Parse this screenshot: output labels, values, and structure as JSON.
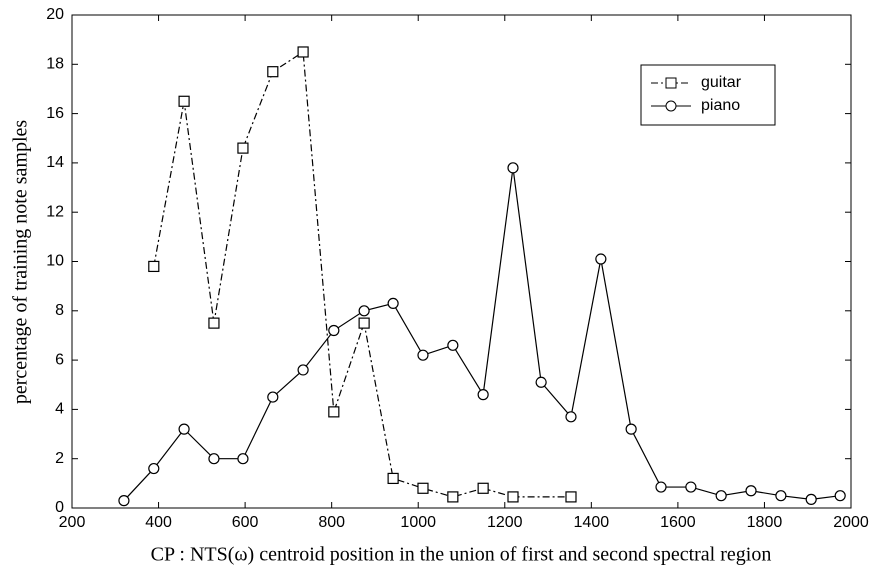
{
  "chart_data": {
    "type": "line",
    "xlabel": "CP : NTS(ω) centroid position in the union of first and second spectral region",
    "ylabel": "percentage of training note samples",
    "xlim": [
      200,
      2000
    ],
    "ylim": [
      0,
      20
    ],
    "xticks": [
      200,
      400,
      600,
      800,
      1000,
      1200,
      1400,
      1600,
      1800,
      2000
    ],
    "yticks": [
      0,
      2,
      4,
      6,
      8,
      10,
      12,
      14,
      16,
      18,
      20
    ],
    "legend": "upper right",
    "series": [
      {
        "name": "guitar",
        "color": "#000000",
        "linestyle": "dashdot",
        "marker": "square",
        "x": [
          389,
          459,
          528,
          595,
          664,
          734,
          805,
          875,
          942,
          1011,
          1080,
          1150,
          1219,
          1353
        ],
        "values": [
          9.8,
          16.5,
          7.5,
          14.6,
          17.7,
          18.5,
          3.9,
          7.5,
          1.2,
          0.8,
          0.45,
          0.8,
          0.45,
          0.45
        ]
      },
      {
        "name": "piano",
        "color": "#000000",
        "linestyle": "solid",
        "marker": "circle",
        "x": [
          320,
          389,
          459,
          528,
          595,
          664,
          734,
          805,
          875,
          942,
          1011,
          1080,
          1150,
          1219,
          1284,
          1353,
          1422,
          1492,
          1561,
          1630,
          1700,
          1769,
          1838,
          1908,
          1975
        ],
        "values": [
          0.3,
          1.6,
          3.2,
          2.0,
          2.0,
          4.5,
          5.6,
          7.2,
          8.0,
          8.3,
          6.2,
          6.6,
          4.6,
          13.8,
          5.1,
          3.7,
          10.1,
          3.2,
          0.85,
          0.85,
          0.5,
          0.7,
          0.5,
          0.35,
          0.5
        ]
      }
    ]
  }
}
